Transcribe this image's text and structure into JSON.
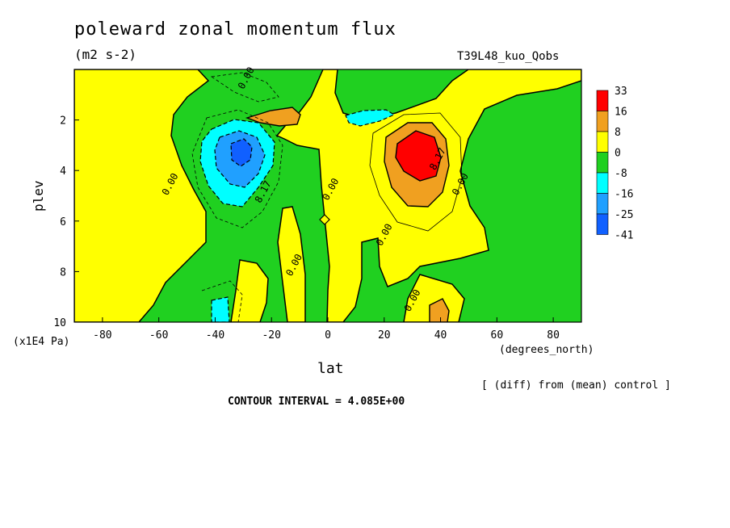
{
  "header": {
    "title": "poleward zonal momentum flux",
    "units": "(m2 s-2)",
    "run_label": "T39L48_kuo_Qobs"
  },
  "footer": {
    "diff_note": "[ (diff) from (mean) control ]",
    "contour_interval": "CONTOUR INTERVAL = 4.085E+00"
  },
  "chart_data": {
    "type": "contour",
    "title": "poleward zonal momentum flux",
    "xlabel": "lat",
    "xunit": "(degrees_north)",
    "ylabel": "plev",
    "yunit": "(x1E4 Pa)",
    "xlim": [
      -90,
      90
    ],
    "ylim": [
      0,
      10
    ],
    "y_inverted": true,
    "x_ticks": [
      -80,
      -60,
      -40,
      -20,
      0,
      20,
      40,
      60,
      80
    ],
    "y_ticks": [
      2,
      4,
      6,
      8,
      10
    ],
    "legend": {
      "placement": "right",
      "levels": [
        "33",
        "16",
        "8",
        "0",
        "-8",
        "-16",
        "-25",
        "-41"
      ],
      "colors": [
        "#ff0000",
        "#f0a020",
        "#ffff00",
        "#20d020",
        "#00ffff",
        "#20a0ff",
        "#1060ff"
      ]
    },
    "contour_labels": [
      {
        "text": "0.00",
        "lat": -28,
        "plev": 0.4
      },
      {
        "text": "0.00",
        "lat": -55,
        "plev": 4.6
      },
      {
        "text": "8.17",
        "lat": -22,
        "plev": 4.9
      },
      {
        "text": "0.00",
        "lat": 2,
        "plev": 4.8
      },
      {
        "text": "0.00",
        "lat": -11,
        "plev": 7.8
      },
      {
        "text": "0.00",
        "lat": 21,
        "plev": 6.6
      },
      {
        "text": "8.17",
        "lat": 40,
        "plev": 3.6
      },
      {
        "text": "0.00",
        "lat": 48,
        "plev": 4.6
      },
      {
        "text": "0.00",
        "lat": 31,
        "plev": 9.2
      }
    ],
    "features": [
      {
        "sign": "negative",
        "min_level": "-41",
        "lat": -31,
        "plev": 3.1
      },
      {
        "sign": "positive",
        "max_level": "33",
        "lat": 31,
        "plev": 3.2
      },
      {
        "sign": "positive",
        "max_level": "16",
        "lat": -15,
        "plev": 1.9
      },
      {
        "sign": "negative",
        "min_level": "-16",
        "lat": 14,
        "plev": 1.9
      },
      {
        "sign": "negative",
        "min_level": "-16",
        "lat": -38,
        "plev": 9.5
      },
      {
        "sign": "positive",
        "max_level": "16",
        "lat": 39,
        "plev": 9.6
      }
    ]
  }
}
